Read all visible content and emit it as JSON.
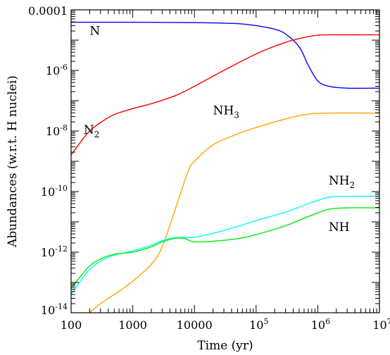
{
  "chart_data": {
    "type": "line",
    "title": "",
    "xlabel": "Time (yr)",
    "ylabel": "Abundances (w.r.t. H nuclei)",
    "x_scale": "log",
    "y_scale": "log",
    "xlim": [
      100,
      10000000
    ],
    "ylim": [
      1e-14,
      0.0001
    ],
    "x_ticks": [
      {
        "value": 100,
        "label": "100"
      },
      {
        "value": 1000,
        "label": "1000"
      },
      {
        "value": 10000,
        "label": "10000"
      },
      {
        "value": 100000,
        "base": "10",
        "exp": "5"
      },
      {
        "value": 1000000,
        "base": "10",
        "exp": "6"
      },
      {
        "value": 10000000,
        "base": "10",
        "exp": "7"
      }
    ],
    "y_ticks": [
      {
        "value": 0.0001,
        "label": "0.0001"
      },
      {
        "value": 1e-06,
        "base": "10",
        "exp": "-6"
      },
      {
        "value": 1e-08,
        "base": "10",
        "exp": "-8"
      },
      {
        "value": 1e-10,
        "base": "10",
        "exp": "-10"
      },
      {
        "value": 1e-12,
        "base": "10",
        "exp": "-12"
      },
      {
        "value": 1e-14,
        "base": "10",
        "exp": "-14"
      }
    ],
    "series": [
      {
        "name": "N",
        "base": "N",
        "sub": "",
        "color": "#0000ff",
        "points": [
          [
            100,
            3.9e-05
          ],
          [
            1000,
            3.9e-05
          ],
          [
            10000,
            3.8e-05
          ],
          [
            50000,
            3.5e-05
          ],
          [
            100000,
            3e-05
          ],
          [
            200000,
            2.3e-05
          ],
          [
            300000,
            1.6e-05
          ],
          [
            500000,
            6e-06
          ],
          [
            700000,
            1.5e-06
          ],
          [
            1000000,
            4.5e-07
          ],
          [
            1500000,
            3e-07
          ],
          [
            3000000,
            2.6e-07
          ],
          [
            10000000,
            2.6e-07
          ]
        ]
      },
      {
        "name": "N2",
        "base": "N",
        "sub": "2",
        "color": "#ff0000",
        "points": [
          [
            100,
            1.6e-09
          ],
          [
            150,
            5e-09
          ],
          [
            200,
            1e-08
          ],
          [
            300,
            1.9e-08
          ],
          [
            500,
            3.5e-08
          ],
          [
            1000,
            5.5e-08
          ],
          [
            2000,
            8e-08
          ],
          [
            5000,
            1.5e-07
          ],
          [
            10000,
            3e-07
          ],
          [
            30000,
            1e-06
          ],
          [
            100000,
            3.5e-06
          ],
          [
            300000,
            8.5e-06
          ],
          [
            700000,
            1.3e-05
          ],
          [
            1000000,
            1.45e-05
          ],
          [
            1500000,
            1.5e-05
          ],
          [
            10000000,
            1.5e-05
          ]
        ]
      },
      {
        "name": "NH3",
        "base": "NH",
        "sub": "3",
        "color": "#ffa500",
        "points": [
          [
            200,
            1e-14
          ],
          [
            300,
            2e-14
          ],
          [
            500,
            4e-14
          ],
          [
            1000,
            1.1e-13
          ],
          [
            2000,
            4e-13
          ],
          [
            3000,
            1.5e-12
          ],
          [
            5000,
            3e-11
          ],
          [
            8000,
            5e-10
          ],
          [
            10000,
            1e-09
          ],
          [
            20000,
            3.5e-09
          ],
          [
            50000,
            8e-09
          ],
          [
            100000,
            1.3e-08
          ],
          [
            300000,
            2.5e-08
          ],
          [
            700000,
            3.6e-08
          ],
          [
            1500000,
            3.9e-08
          ],
          [
            10000000,
            3.9e-08
          ]
        ]
      },
      {
        "name": "NH2",
        "base": "NH",
        "sub": "2",
        "color": "#00ffff",
        "points": [
          [
            100,
            4e-14
          ],
          [
            150,
            1.3e-13
          ],
          [
            200,
            2.7e-13
          ],
          [
            300,
            5e-13
          ],
          [
            500,
            8e-13
          ],
          [
            1000,
            1.1e-12
          ],
          [
            2000,
            1.7e-12
          ],
          [
            3000,
            2.4e-12
          ],
          [
            5000,
            3e-12
          ],
          [
            10000,
            3.1e-12
          ],
          [
            20000,
            4.2e-12
          ],
          [
            50000,
            7e-12
          ],
          [
            100000,
            1.1e-11
          ],
          [
            300000,
            2.1e-11
          ],
          [
            700000,
            4e-11
          ],
          [
            1500000,
            6.5e-11
          ],
          [
            3000000,
            7e-11
          ],
          [
            10000000,
            7e-11
          ]
        ]
      },
      {
        "name": "NH",
        "base": "NH",
        "sub": "",
        "color": "#00ee00",
        "points": [
          [
            100,
            6.5e-14
          ],
          [
            150,
            1.8e-13
          ],
          [
            200,
            3.5e-13
          ],
          [
            300,
            6e-13
          ],
          [
            500,
            8.5e-13
          ],
          [
            1000,
            1e-12
          ],
          [
            2000,
            1.5e-12
          ],
          [
            3000,
            2.2e-12
          ],
          [
            5000,
            2.9e-12
          ],
          [
            7000,
            2.8e-12
          ],
          [
            10000,
            2.2e-12
          ],
          [
            20000,
            2.3e-12
          ],
          [
            50000,
            2.8e-12
          ],
          [
            100000,
            3.8e-12
          ],
          [
            300000,
            7.5e-12
          ],
          [
            700000,
            1.5e-11
          ],
          [
            1500000,
            2.6e-11
          ],
          [
            3000000,
            2.9e-11
          ],
          [
            10000000,
            2.9e-11
          ]
        ]
      }
    ],
    "annotations": [
      {
        "series": "N",
        "base": "N",
        "sub": "",
        "x": 200,
        "y": 1.5e-05
      },
      {
        "series": "N2",
        "base": "N",
        "sub": "2",
        "x": 160,
        "y": 8e-09
      },
      {
        "series": "NH3",
        "base": "NH",
        "sub": "3",
        "x": 20000,
        "y": 3.5e-08
      },
      {
        "series": "NH2",
        "base": "NH",
        "sub": "2",
        "x": 1500000,
        "y": 1.7e-10
      },
      {
        "series": "NH",
        "base": "NH",
        "sub": "",
        "x": 1500000,
        "y": 5e-12
      }
    ],
    "grid": false,
    "legend": "none (labels placed next to curves)"
  }
}
